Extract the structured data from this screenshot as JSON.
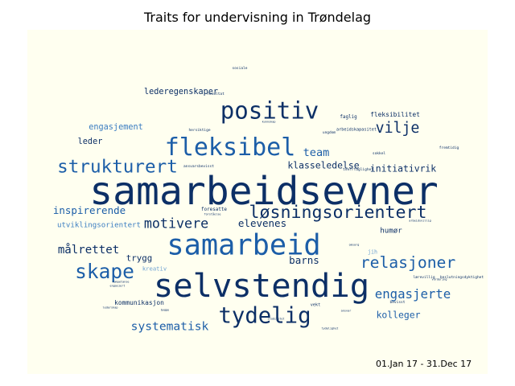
{
  "chart_data": {
    "type": "wordcloud",
    "title": "Traits for undervisning in Trøndelag",
    "date_range": "01.Jan 17 - 31.Dec 17",
    "colors": {
      "background": "#fffff0",
      "dark": "#0c2f66",
      "mid": "#1c5ea8",
      "light": "#3a7cc1",
      "pale": "#6a9fd1"
    },
    "words": [
      {
        "text": "samarbeidsevner",
        "weight": 100,
        "tone": "dark"
      },
      {
        "text": "selvstendig",
        "weight": 82,
        "tone": "dark"
      },
      {
        "text": "samarbeid",
        "weight": 70,
        "tone": "mid"
      },
      {
        "text": "fleksibel",
        "weight": 58,
        "tone": "mid"
      },
      {
        "text": "positiv",
        "weight": 56,
        "tone": "dark"
      },
      {
        "text": "tydelig",
        "weight": 52,
        "tone": "dark"
      },
      {
        "text": "skape",
        "weight": 46,
        "tone": "mid"
      },
      {
        "text": "strukturert",
        "weight": 42,
        "tone": "mid"
      },
      {
        "text": "løsningsorientert",
        "weight": 40,
        "tone": "dark"
      },
      {
        "text": "relasjoner",
        "weight": 36,
        "tone": "mid"
      },
      {
        "text": "vilje",
        "weight": 33,
        "tone": "dark"
      },
      {
        "text": "motivere",
        "weight": 30,
        "tone": "dark"
      },
      {
        "text": "engasjerte",
        "weight": 28,
        "tone": "mid"
      },
      {
        "text": "systematisk",
        "weight": 26,
        "tone": "mid"
      },
      {
        "text": "målrettet",
        "weight": 25,
        "tone": "dark"
      },
      {
        "text": "team",
        "weight": 24,
        "tone": "mid"
      },
      {
        "text": "inspirerende",
        "weight": 22,
        "tone": "mid"
      },
      {
        "text": "elevenes",
        "weight": 22,
        "tone": "dark"
      },
      {
        "text": "barns",
        "weight": 22,
        "tone": "dark"
      },
      {
        "text": "klasseledelse",
        "weight": 20,
        "tone": "dark"
      },
      {
        "text": "initiativrik",
        "weight": 20,
        "tone": "dark"
      },
      {
        "text": "kolleger",
        "weight": 20,
        "tone": "mid"
      },
      {
        "text": "trygg",
        "weight": 19,
        "tone": "dark"
      },
      {
        "text": "engasjement",
        "weight": 18,
        "tone": "light"
      },
      {
        "text": "leder",
        "weight": 18,
        "tone": "dark"
      },
      {
        "text": "lederegenskaper",
        "weight": 18,
        "tone": "dark"
      },
      {
        "text": "utviklingsorientert",
        "weight": 16,
        "tone": "light"
      },
      {
        "text": "humør",
        "weight": 16,
        "tone": "dark"
      },
      {
        "text": "kommunikasjon",
        "weight": 14,
        "tone": "dark"
      },
      {
        "text": "fleksibilitet",
        "weight": 14,
        "tone": "dark"
      },
      {
        "text": "kreativ",
        "weight": 13,
        "tone": "pale"
      },
      {
        "text": "jih",
        "weight": 12,
        "tone": "pale"
      },
      {
        "text": "faglig",
        "weight": 11,
        "tone": "dark"
      },
      {
        "text": "foresatte",
        "weight": 11,
        "tone": "dark"
      },
      {
        "text": "vekt",
        "weight": 10,
        "tone": "dark"
      },
      {
        "text": "arbeidskapasitet",
        "weight": 10,
        "tone": "dark"
      },
      {
        "text": "ansvarsbevisst",
        "weight": 9,
        "tone": "dark"
      },
      {
        "text": "tverrfaglighet",
        "weight": 9,
        "tone": "dark"
      },
      {
        "text": "sosiale",
        "weight": 9,
        "tone": "dark"
      },
      {
        "text": "hersiktige",
        "weight": 9,
        "tone": "dark"
      },
      {
        "text": "resultat",
        "weight": 9,
        "tone": "dark"
      },
      {
        "text": "ungdom",
        "weight": 9,
        "tone": "dark"
      },
      {
        "text": "sokkel",
        "weight": 9,
        "tone": "dark"
      },
      {
        "text": "fremtidig",
        "weight": 9,
        "tone": "dark"
      },
      {
        "text": "beslutningsdyktighet",
        "weight": 9,
        "tone": "dark"
      },
      {
        "text": "bevisst",
        "weight": 9,
        "tone": "dark"
      },
      {
        "text": "lærevillig",
        "weight": 9,
        "tone": "dark"
      },
      {
        "text": "stabilitet",
        "weight": 8,
        "tone": "dark"
      },
      {
        "text": "kompetanse",
        "weight": 8,
        "tone": "dark"
      },
      {
        "text": "arbeidsvillig",
        "weight": 8,
        "tone": "dark"
      },
      {
        "text": "omsorg",
        "weight": 8,
        "tone": "dark"
      },
      {
        "text": "bygge",
        "weight": 8,
        "tone": "dark"
      },
      {
        "text": "lederskap",
        "weight": 8,
        "tone": "dark"
      },
      {
        "text": "engasjert",
        "weight": 8,
        "tone": "dark"
      },
      {
        "text": "vurdering",
        "weight": 8,
        "tone": "dark"
      },
      {
        "text": "tydelighet",
        "weight": 8,
        "tone": "dark"
      },
      {
        "text": "ansvar",
        "weight": 8,
        "tone": "dark"
      },
      {
        "text": "kunnskap",
        "weight": 8,
        "tone": "dark"
      },
      {
        "text": "forståelse",
        "weight": 8,
        "tone": "dark"
      }
    ]
  }
}
